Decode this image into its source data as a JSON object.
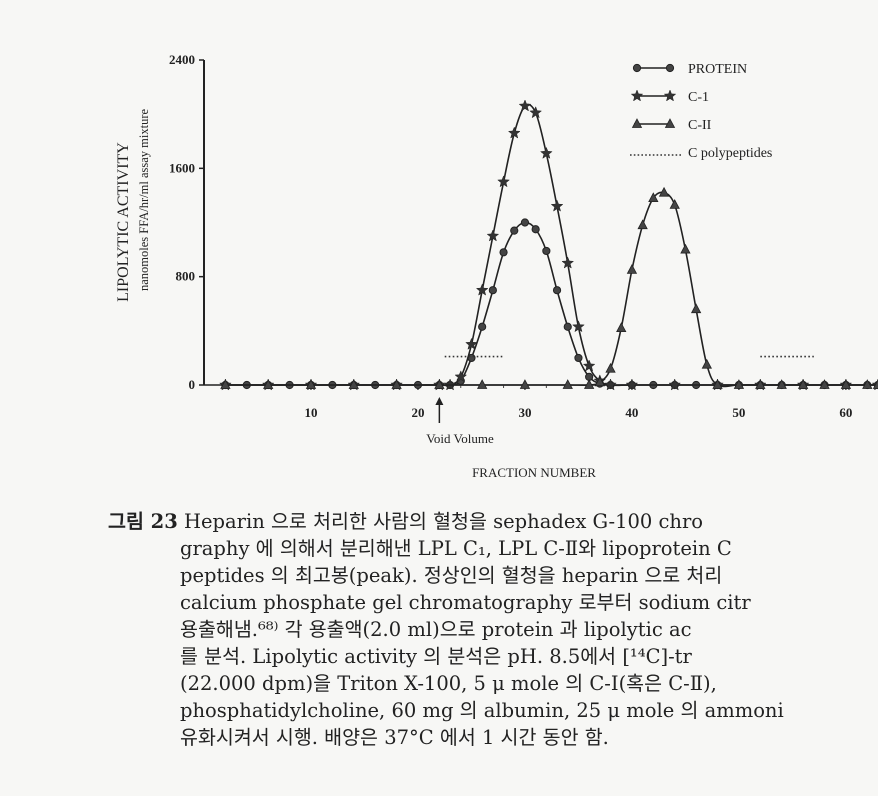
{
  "chart_data": {
    "type": "line",
    "ylabel": "LIPOLYTIC ACTIVITY",
    "ylabel_sub": "nanomoles FFA/hr/ml assay mixture",
    "xlabel": "FRACTION NUMBER",
    "xlim": [
      0,
      63
    ],
    "ylim": [
      0,
      2400
    ],
    "yticks": [
      "0",
      "800",
      "1600",
      "2400"
    ],
    "xticks": [
      "10",
      "20",
      "30",
      "40",
      "50",
      "60"
    ],
    "annotation": "Void Volume",
    "annotation_x": 22,
    "series": [
      {
        "name": "PROTEIN",
        "marker": "circle",
        "x": [
          2,
          4,
          6,
          8,
          10,
          12,
          14,
          16,
          18,
          20,
          22,
          23,
          24,
          25,
          26,
          27,
          28,
          29,
          30,
          31,
          32,
          33,
          34,
          35,
          36,
          37,
          38,
          40,
          42,
          44,
          46,
          48,
          50,
          52,
          54,
          56,
          58,
          60,
          62,
          63
        ],
        "y": [
          0,
          0,
          0,
          0,
          0,
          0,
          0,
          0,
          0,
          0,
          0,
          0,
          30,
          200,
          430,
          700,
          980,
          1140,
          1200,
          1150,
          990,
          700,
          430,
          200,
          60,
          10,
          0,
          0,
          0,
          0,
          0,
          0,
          0,
          0,
          0,
          0,
          0,
          0,
          0,
          0
        ]
      },
      {
        "name": "C-1",
        "marker": "star",
        "x": [
          2,
          6,
          10,
          14,
          18,
          22,
          23,
          24,
          25,
          26,
          27,
          28,
          29,
          30,
          31,
          32,
          33,
          34,
          35,
          36,
          37,
          38,
          40,
          44,
          48,
          52,
          56,
          60,
          63
        ],
        "y": [
          0,
          0,
          0,
          0,
          0,
          0,
          0,
          60,
          300,
          700,
          1100,
          1500,
          1860,
          2060,
          2010,
          1710,
          1320,
          900,
          430,
          140,
          30,
          0,
          0,
          0,
          0,
          0,
          0,
          0,
          0
        ]
      },
      {
        "name": "C-II",
        "marker": "triangle",
        "x": [
          2,
          6,
          10,
          14,
          18,
          22,
          26,
          30,
          34,
          36,
          37,
          38,
          39,
          40,
          41,
          42,
          43,
          44,
          45,
          46,
          47,
          48,
          50,
          52,
          54,
          56,
          58,
          60,
          62,
          63
        ],
        "y": [
          0,
          0,
          0,
          0,
          0,
          0,
          0,
          0,
          0,
          0,
          20,
          120,
          420,
          850,
          1180,
          1380,
          1420,
          1330,
          1000,
          560,
          150,
          0,
          0,
          0,
          0,
          0,
          0,
          0,
          0,
          0
        ]
      },
      {
        "name": "C polypeptides",
        "marker": "dotted",
        "segments": [
          {
            "x": [
              22.5,
              28
            ],
            "y": [
              210,
              210
            ]
          },
          {
            "x": [
              52,
              57
            ],
            "y": [
              210,
              210
            ]
          }
        ]
      }
    ]
  },
  "caption": {
    "label": "그림 23",
    "lines": [
      "Heparin 으로 처리한 사람의 혈청을 sephadex G-100 chro",
      "graphy 에 의해서 분리해낸 LPL C₁, LPL C-Ⅱ와 lipoprotein C",
      "peptides 의 최고봉(peak). 정상인의 혈청을 heparin 으로 처리",
      "calcium phosphate gel chromatography 로부터 sodium citr",
      "용출해냄.⁶⁸⁾ 각 용출액(2.0 ml)으로 protein 과 lipolytic ac",
      "를 분석. Lipolytic activity 의 분석은 pH. 8.5에서 [¹⁴C]-tr",
      "(22.000 dpm)을 Triton X-100, 5 μ mole 의 C-Ⅰ(혹은 C-Ⅱ),",
      "phosphatidylcholine, 60 mg 의 albumin, 25 μ mole 의 ammoni",
      "유화시켜서 시행. 배양은 37°C 에서 1 시간 동안 함."
    ]
  }
}
